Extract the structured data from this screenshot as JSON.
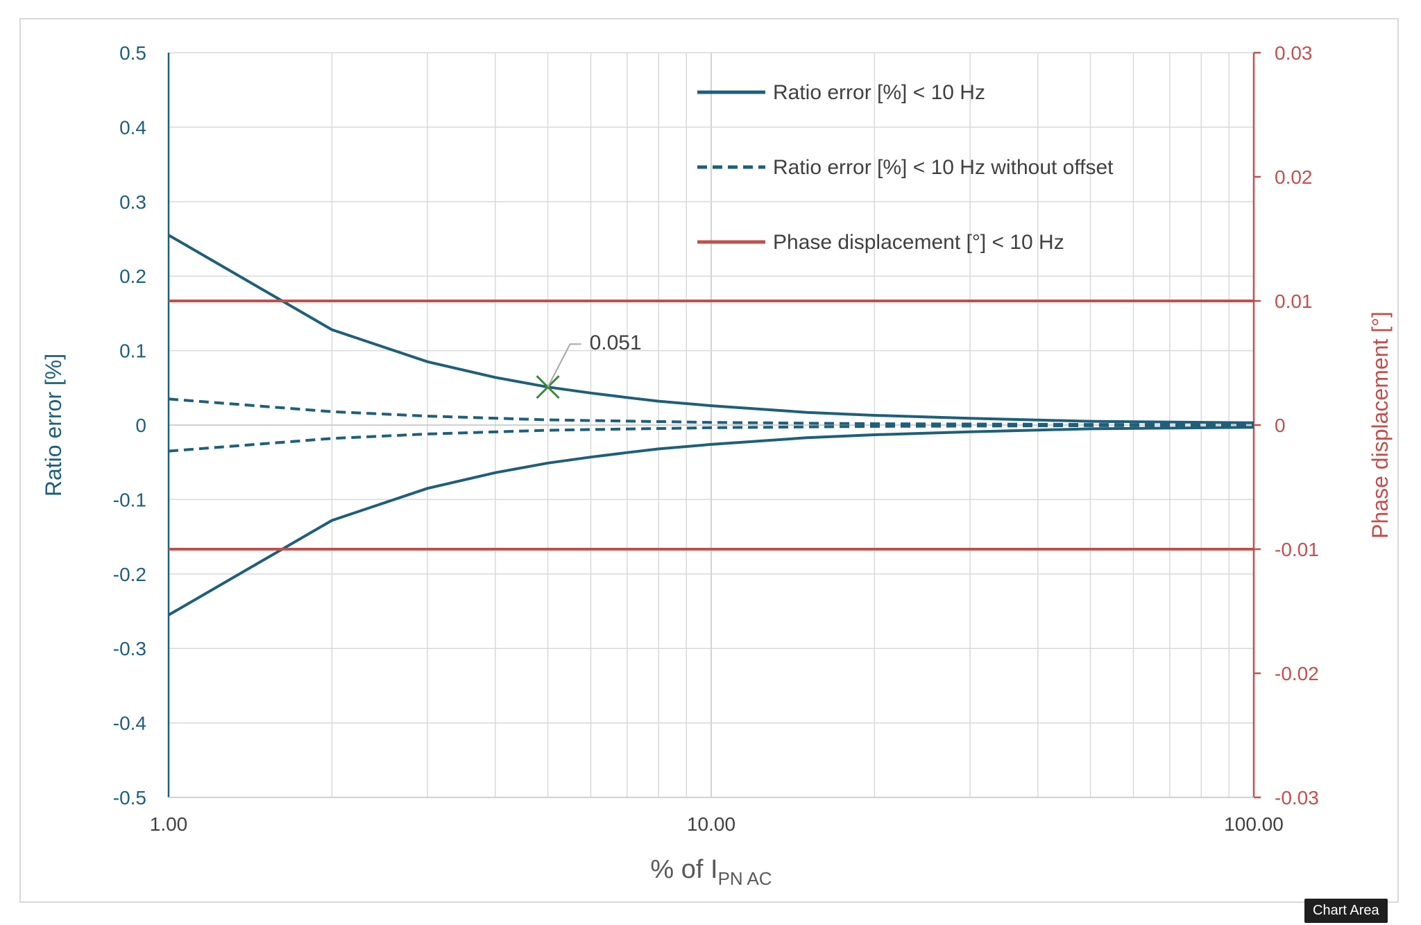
{
  "chart_data": {
    "type": "line",
    "x_scale": "log",
    "xlim": [
      1,
      100
    ],
    "x_ticks": [
      "1.00",
      "10.00",
      "100.00"
    ],
    "xlabel_main": "% of I",
    "xlabel_sub": "PN AC",
    "ylabel_left": "Ratio error [%]",
    "ylim_left": [
      -0.5,
      0.5
    ],
    "y_ticks_left": [
      "0.5",
      "0.4",
      "0.3",
      "0.2",
      "0.1",
      "0",
      "-0.1",
      "-0.2",
      "-0.3",
      "-0.4",
      "-0.5"
    ],
    "ylabel_right": "Phase displacement [°]",
    "ylim_right": [
      -0.03,
      0.03
    ],
    "y_ticks_right": [
      "0.03",
      "0.02",
      "0.01",
      "0",
      "-0.01",
      "-0.02",
      "-0.03"
    ],
    "legend_position": "top-right",
    "series": [
      {
        "name": "Ratio error [%] < 10 Hz",
        "legend": true,
        "axis": "left",
        "style": "solid",
        "color": "#1f5f7a",
        "x": [
          1,
          2,
          3,
          4,
          5,
          6,
          7,
          8,
          10,
          15,
          20,
          30,
          50,
          100
        ],
        "values": [
          0.255,
          0.128,
          0.085,
          0.064,
          0.051,
          0.043,
          0.037,
          0.032,
          0.026,
          0.017,
          0.013,
          0.009,
          0.005,
          0.003
        ]
      },
      {
        "name": "Ratio error [%] < 10 Hz (negative)",
        "legend": false,
        "axis": "left",
        "style": "solid",
        "color": "#1f5f7a",
        "x": [
          1,
          2,
          3,
          4,
          5,
          6,
          7,
          8,
          10,
          15,
          20,
          30,
          50,
          100
        ],
        "values": [
          -0.255,
          -0.128,
          -0.085,
          -0.064,
          -0.051,
          -0.043,
          -0.037,
          -0.032,
          -0.026,
          -0.017,
          -0.013,
          -0.009,
          -0.005,
          -0.003
        ]
      },
      {
        "name": "Ratio error [%] < 10 Hz without offset",
        "legend": true,
        "axis": "left",
        "style": "dashed",
        "color": "#1f5f7a",
        "x": [
          1,
          2,
          3,
          5,
          10,
          20,
          50,
          100
        ],
        "values": [
          0.035,
          0.018,
          0.012,
          0.007,
          0.0035,
          0.0018,
          0.0008,
          0.0004
        ]
      },
      {
        "name": "Ratio error [%] < 10 Hz without offset (negative)",
        "legend": false,
        "axis": "left",
        "style": "dashed",
        "color": "#1f5f7a",
        "x": [
          1,
          2,
          3,
          5,
          10,
          20,
          50,
          100
        ],
        "values": [
          -0.035,
          -0.018,
          -0.012,
          -0.007,
          -0.0035,
          -0.0018,
          -0.0008,
          -0.0004
        ]
      },
      {
        "name": "Phase displacement [°] < 10 Hz",
        "legend": true,
        "axis": "right",
        "style": "solid",
        "color": "#c0504d",
        "x": [
          1,
          100
        ],
        "values": [
          0.01,
          0.01
        ]
      },
      {
        "name": "Phase displacement [°] < 10 Hz (negative)",
        "legend": false,
        "axis": "right",
        "style": "solid",
        "color": "#c0504d",
        "x": [
          1,
          100
        ],
        "values": [
          -0.01,
          -0.01
        ]
      }
    ],
    "annotations": [
      {
        "x": 5,
        "y": 0.051,
        "text": "0.051",
        "marker": "x",
        "marker_color": "#3a8a3a"
      }
    ]
  },
  "ui": {
    "tooltip": "Chart Area"
  }
}
